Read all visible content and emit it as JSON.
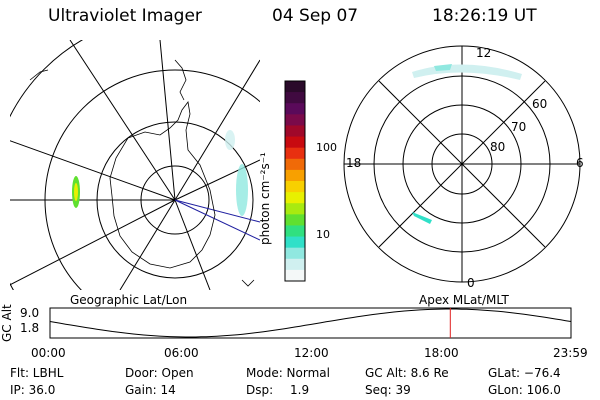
{
  "header": {
    "instrument": "Ultraviolet Imager",
    "date": "04 Sep 07",
    "time": "18:26:19 UT"
  },
  "colorbar": {
    "label": "photon cm⁻²s⁻¹",
    "ticks": [
      "100",
      "10"
    ],
    "colors": [
      "#2a0a2a",
      "#400a40",
      "#5a0a5a",
      "#7a0a4a",
      "#a0082a",
      "#c80a10",
      "#e83010",
      "#f06a08",
      "#f8a000",
      "#f8d000",
      "#e8f000",
      "#a8ea10",
      "#60e030",
      "#30e080",
      "#30e0c8",
      "#90e8e0",
      "#d0f0f0",
      "#f4f8f8"
    ]
  },
  "polar": {
    "mlt_labels": {
      "top": "12",
      "left": "18",
      "right": "6",
      "bottom": "0"
    },
    "lat_labels": [
      "60",
      "70",
      "80"
    ]
  },
  "timeline": {
    "left_label": "Geographic Lat/Lon",
    "right_label": "Apex MLat/MLT",
    "y_label": "GC Alt",
    "y_max": "9.0",
    "y_min": "1.8",
    "x_ticks": [
      "00:00",
      "06:00",
      "12:00",
      "18:00",
      "23:59"
    ],
    "current_time_hours": 18.44
  },
  "footer": {
    "filter": "Flt: LBHL",
    "ip": "IP: 36.0",
    "door": "Door: Open",
    "gain": "Gain: 14",
    "mode": "Mode: Normal",
    "dsp_label": "Dsp:",
    "dsp_value": "1.9",
    "gc_alt": "GC Alt: 8.6 Re",
    "seq": "Seq: 39",
    "glat": "GLat: −76.4",
    "glon": "GLon: 106.0"
  }
}
